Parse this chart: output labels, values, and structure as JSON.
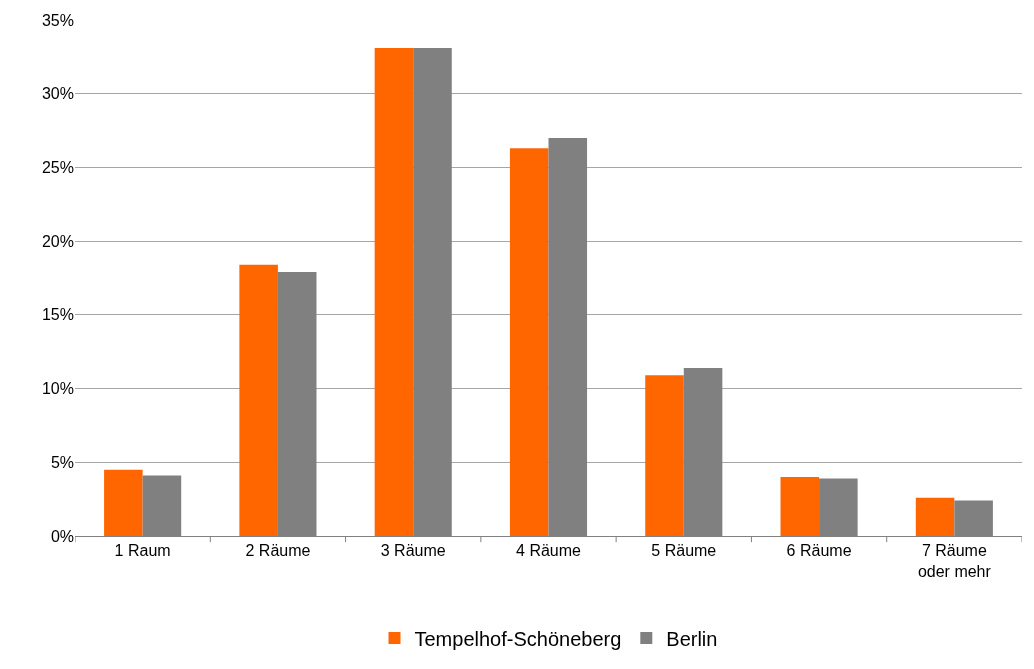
{
  "chart_data": {
    "type": "bar",
    "categories": [
      "1 Raum",
      "2 Räume",
      "3 Räume",
      "4 Räume",
      "5 Räume",
      "6 Räume",
      "7 Räume\noder mehr"
    ],
    "series": [
      {
        "name": "Tempelhof-Schöneberg",
        "color": "#ff6600",
        "values": [
          4.5,
          18.4,
          33.1,
          26.3,
          10.9,
          4.0,
          2.6
        ]
      },
      {
        "name": "Berlin",
        "color": "#808080",
        "values": [
          4.1,
          17.9,
          33.1,
          27.0,
          11.4,
          3.9,
          2.4
        ]
      }
    ],
    "ylim": [
      0,
      35
    ],
    "yticks": [
      {
        "value": 0,
        "label": "0%"
      },
      {
        "value": 5,
        "label": "5%"
      },
      {
        "value": 10,
        "label": "10%"
      },
      {
        "value": 15,
        "label": "15%"
      },
      {
        "value": 20,
        "label": "20%"
      },
      {
        "value": 25,
        "label": "25%"
      },
      {
        "value": 30,
        "label": "30%"
      },
      {
        "value": 35,
        "label": "35%"
      }
    ],
    "grid": "y",
    "legend": "bottom"
  }
}
